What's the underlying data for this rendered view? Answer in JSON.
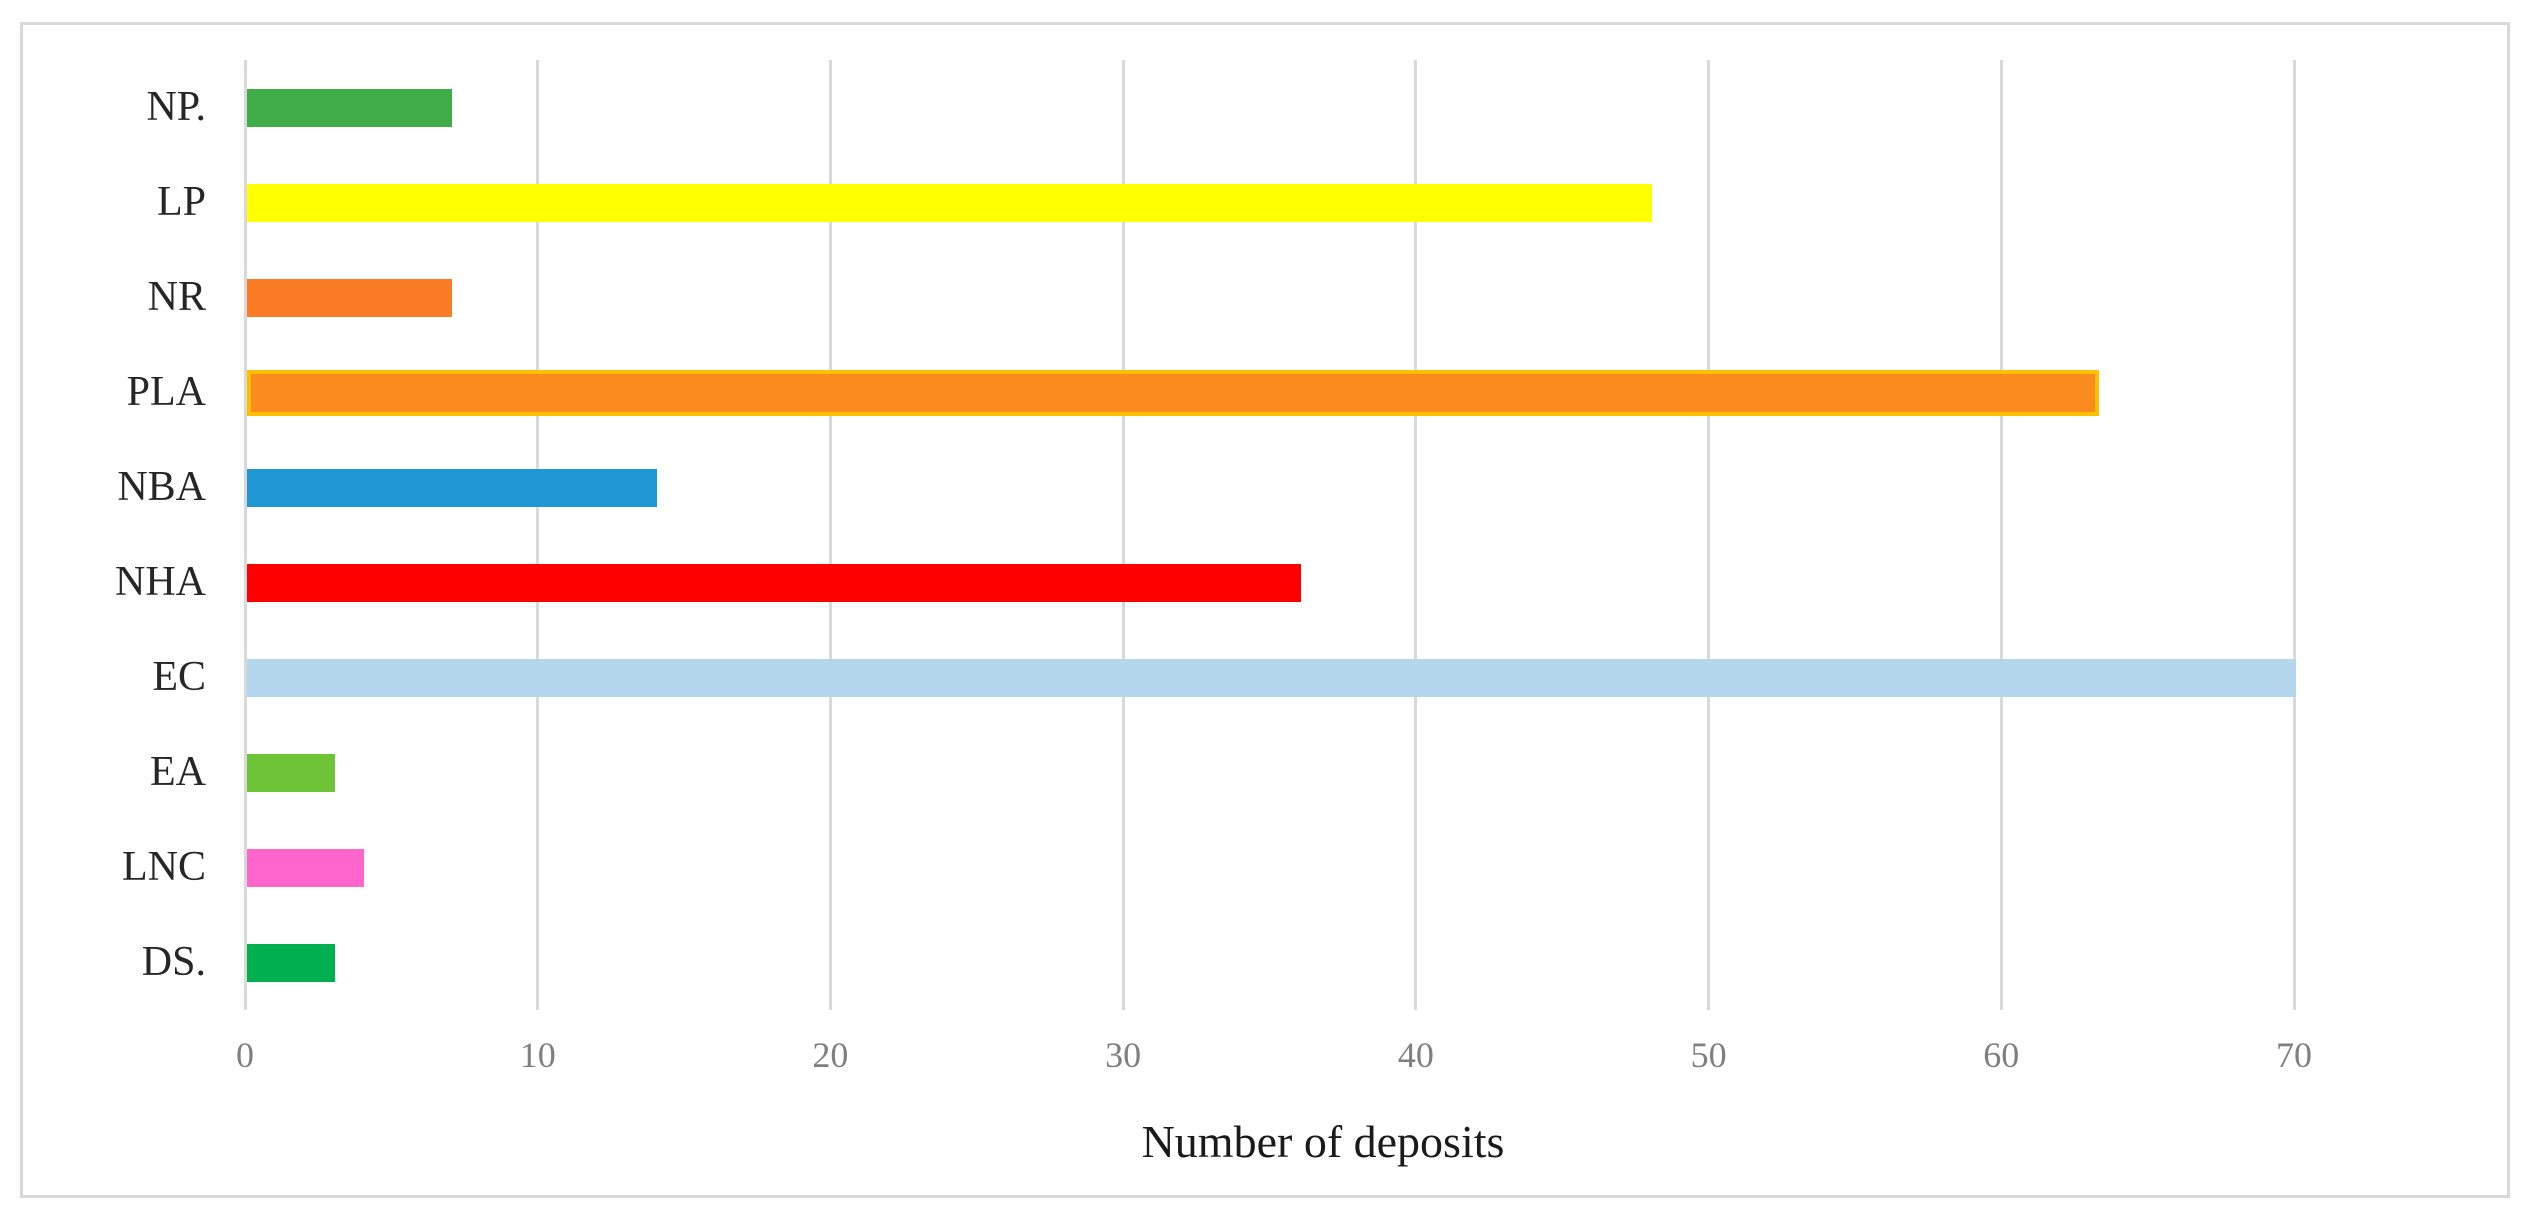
{
  "chart_data": {
    "type": "bar",
    "orientation": "horizontal",
    "title": "",
    "xlabel": "Number of deposits",
    "ylabel": "",
    "categories": [
      "NP.",
      "LP",
      "NR",
      "PLA",
      "NBA",
      "NHA",
      "EC",
      "EA",
      "LNC",
      "DS."
    ],
    "values": [
      7,
      48,
      7,
      63,
      14,
      36,
      70,
      3,
      4,
      3
    ],
    "bar_colors": [
      "#3FAE49",
      "#FFFF00",
      "#FA7D25",
      "#FB8B1E",
      "#1F97D4",
      "#FE0000",
      "#B4D7EE",
      "#6CC436",
      "#FF66CC",
      "#00B050"
    ],
    "bar_border_colors": [
      null,
      null,
      null,
      "#FFC000",
      null,
      null,
      null,
      null,
      null,
      null
    ],
    "xlim": [
      0,
      70
    ],
    "xticks": [
      0,
      10,
      20,
      30,
      40,
      50,
      60,
      70
    ],
    "xtick_labels": [
      "0",
      "10",
      "20",
      "30",
      "40",
      "50",
      "60",
      "70"
    ],
    "grid": true,
    "legend": false,
    "gridline_color": "#D9D9D9",
    "tick_label_color": "#7F7F7F",
    "category_label_color": "#262626",
    "frame_border_color": "#D9D9D9",
    "background_color": "#FFFFFF"
  }
}
